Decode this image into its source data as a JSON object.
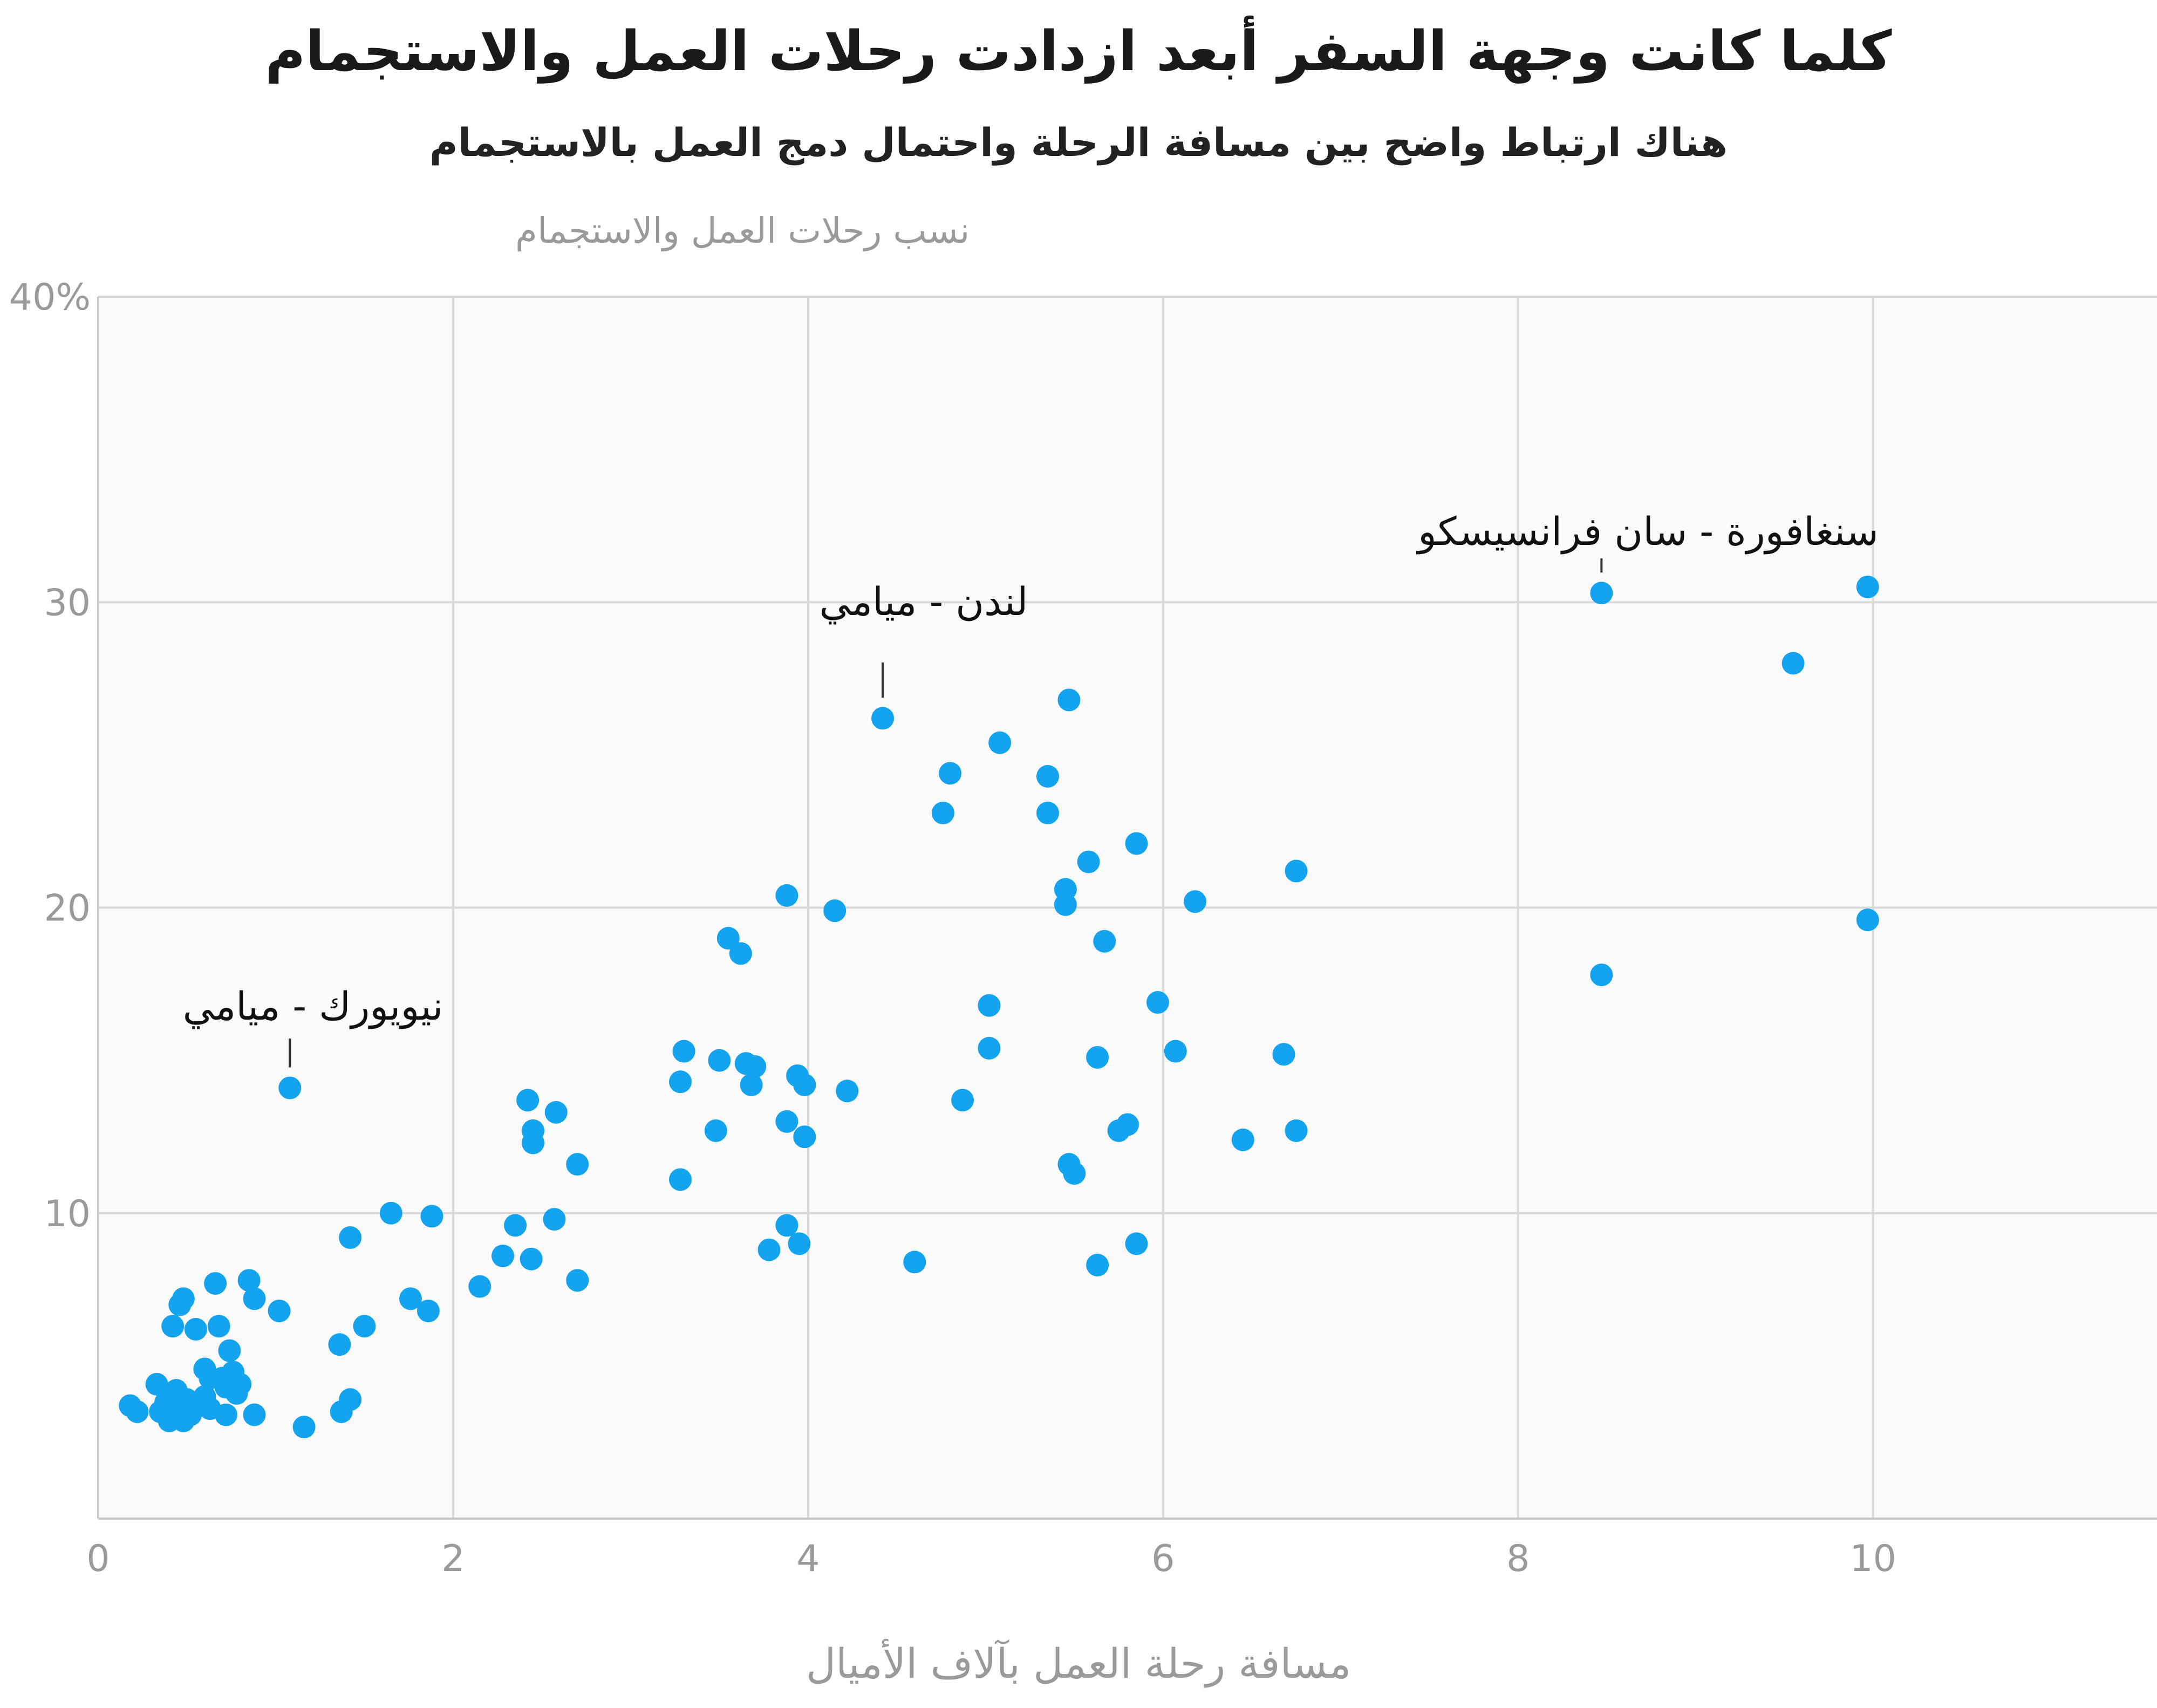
{
  "title": "كلما كانت وجهة السفر أبعد ازدادت رحلات العمل والاستجمام",
  "subtitle": "هناك ارتباط واضح بين مسافة الرحلة واحتمال دمج العمل بالاستجمام",
  "colors": {
    "point": "#13a3ef",
    "grid": "#d9d9d9",
    "plot_bg": "#fafafa",
    "axis_text": "#9a9a9a",
    "annotation": "#111111"
  },
  "chart_data": {
    "type": "scatter",
    "ylabel": "نسب رحلات العمل والاستجمام",
    "xlabel": "مسافة رحلة العمل بآلاف الأميال",
    "xlim": [
      0,
      11.6
    ],
    "ylim": [
      0,
      40
    ],
    "x_ticks": [
      0,
      2,
      4,
      6,
      8,
      10
    ],
    "y_ticks": [
      10,
      20,
      30,
      40
    ],
    "x_tick_labels": [
      "0",
      "2",
      "4",
      "6",
      "8",
      "10"
    ],
    "y_tick_labels": [
      "10",
      "20",
      "30",
      "40%"
    ],
    "grid": true,
    "legend": "none",
    "points": [
      [
        0.18,
        3.7
      ],
      [
        0.22,
        3.5
      ],
      [
        0.33,
        4.4
      ],
      [
        0.35,
        3.5
      ],
      [
        0.38,
        3.8
      ],
      [
        0.4,
        3.2
      ],
      [
        0.42,
        6.3
      ],
      [
        0.44,
        4.2
      ],
      [
        0.46,
        3.6
      ],
      [
        0.46,
        7.0
      ],
      [
        0.48,
        3.2
      ],
      [
        0.48,
        7.2
      ],
      [
        0.5,
        3.9
      ],
      [
        0.52,
        3.4
      ],
      [
        0.55,
        6.2
      ],
      [
        0.57,
        3.7
      ],
      [
        0.6,
        4.0
      ],
      [
        0.6,
        4.9
      ],
      [
        0.63,
        4.6
      ],
      [
        0.63,
        3.6
      ],
      [
        0.66,
        7.7
      ],
      [
        0.68,
        6.3
      ],
      [
        0.7,
        4.6
      ],
      [
        0.72,
        3.4
      ],
      [
        0.72,
        4.3
      ],
      [
        0.74,
        5.5
      ],
      [
        0.76,
        4.8
      ],
      [
        0.78,
        4.1
      ],
      [
        0.8,
        4.4
      ],
      [
        0.85,
        7.8
      ],
      [
        0.88,
        3.4
      ],
      [
        0.88,
        7.2
      ],
      [
        1.02,
        6.8
      ],
      [
        1.08,
        14.1
      ],
      [
        1.16,
        3.0
      ],
      [
        1.36,
        5.7
      ],
      [
        1.37,
        3.5
      ],
      [
        1.42,
        3.9
      ],
      [
        1.42,
        9.2
      ],
      [
        1.5,
        6.3
      ],
      [
        1.65,
        10.0
      ],
      [
        1.76,
        7.2
      ],
      [
        1.86,
        6.8
      ],
      [
        1.88,
        9.9
      ],
      [
        2.15,
        7.6
      ],
      [
        2.28,
        8.6
      ],
      [
        2.35,
        9.6
      ],
      [
        2.42,
        13.7
      ],
      [
        2.44,
        8.5
      ],
      [
        2.45,
        12.7
      ],
      [
        2.45,
        12.3
      ],
      [
        2.57,
        9.8
      ],
      [
        2.58,
        13.3
      ],
      [
        2.7,
        11.6
      ],
      [
        2.7,
        7.8
      ],
      [
        3.28,
        11.1
      ],
      [
        3.28,
        14.3
      ],
      [
        3.3,
        15.3
      ],
      [
        3.48,
        12.7
      ],
      [
        3.5,
        15.0
      ],
      [
        3.55,
        19.0
      ],
      [
        3.62,
        18.5
      ],
      [
        3.65,
        14.9
      ],
      [
        3.68,
        14.2
      ],
      [
        3.7,
        14.8
      ],
      [
        3.78,
        8.8
      ],
      [
        3.88,
        20.4
      ],
      [
        3.88,
        13.0
      ],
      [
        3.88,
        9.6
      ],
      [
        3.94,
        14.5
      ],
      [
        3.95,
        9.0
      ],
      [
        3.98,
        12.5
      ],
      [
        3.98,
        14.2
      ],
      [
        4.15,
        19.9
      ],
      [
        4.22,
        14.0
      ],
      [
        4.42,
        26.2
      ],
      [
        4.6,
        8.4
      ],
      [
        4.76,
        23.1
      ],
      [
        4.8,
        24.4
      ],
      [
        4.87,
        13.7
      ],
      [
        5.02,
        16.8
      ],
      [
        5.02,
        15.4
      ],
      [
        5.08,
        25.4
      ],
      [
        5.35,
        24.3
      ],
      [
        5.35,
        23.1
      ],
      [
        5.45,
        20.6
      ],
      [
        5.45,
        20.1
      ],
      [
        5.47,
        26.8
      ],
      [
        5.47,
        11.6
      ],
      [
        5.5,
        11.3
      ],
      [
        5.58,
        21.5
      ],
      [
        5.63,
        8.3
      ],
      [
        5.63,
        15.1
      ],
      [
        5.67,
        18.9
      ],
      [
        5.75,
        12.7
      ],
      [
        5.8,
        12.9
      ],
      [
        5.85,
        22.1
      ],
      [
        5.85,
        9.0
      ],
      [
        5.97,
        16.9
      ],
      [
        6.07,
        15.3
      ],
      [
        6.18,
        20.2
      ],
      [
        6.45,
        12.4
      ],
      [
        6.68,
        15.2
      ],
      [
        6.75,
        21.2
      ],
      [
        6.75,
        12.7
      ],
      [
        8.47,
        30.3
      ],
      [
        8.47,
        17.8
      ],
      [
        9.55,
        28.0
      ],
      [
        9.97,
        30.5
      ],
      [
        9.97,
        19.6
      ]
    ],
    "annotations": [
      {
        "text": "نيويورك - ميامي",
        "x": 1.08,
        "y": 14.1
      },
      {
        "text": "لندن - ميامي",
        "x": 4.42,
        "y": 26.2
      },
      {
        "text": "سنغافورة - سان فرانسيسكو",
        "x": 8.47,
        "y": 30.3
      }
    ]
  }
}
